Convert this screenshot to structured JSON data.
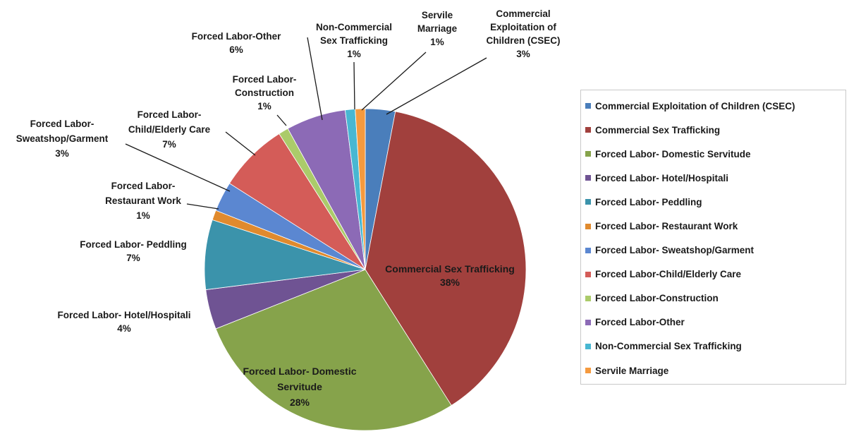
{
  "chart_data": {
    "type": "pie",
    "title": "",
    "slices": [
      {
        "name": "Commercial Exploitation of Children (CSEC)",
        "value": 3,
        "color": "#4A7EBB",
        "label": [
          "Commercial",
          "Exploitation of",
          "Children (CSEC)"
        ],
        "pct_label": "3%"
      },
      {
        "name": "Commercial Sex Trafficking",
        "value": 38,
        "color": "#A1403D",
        "label": [
          "Commercial Sex Trafficking"
        ],
        "pct_label": "38%"
      },
      {
        "name": "Forced Labor- Domestic Servitude",
        "value": 28,
        "color": "#86A34B",
        "label": [
          "Forced Labor- Domestic",
          "Servitude"
        ],
        "pct_label": "28%"
      },
      {
        "name": "Forced Labor- Hotel/Hospitali",
        "value": 4,
        "color": "#6F5393",
        "label": [
          "Forced Labor- Hotel/Hospitali"
        ],
        "pct_label": "4%"
      },
      {
        "name": "Forced Labor- Peddling",
        "value": 7,
        "color": "#3B93AB",
        "label": [
          "Forced Labor- Peddling"
        ],
        "pct_label": "7%"
      },
      {
        "name": "Forced Labor- Restaurant Work",
        "value": 1,
        "color": "#E08A2E",
        "label": [
          "Forced Labor-",
          "Restaurant Work"
        ],
        "pct_label": "1%"
      },
      {
        "name": "Forced Labor- Sweatshop/Garment",
        "value": 3,
        "color": "#5B87D1",
        "label": [
          "Forced Labor-",
          "Sweatshop/Garment"
        ],
        "pct_label": "3%"
      },
      {
        "name": "Forced Labor-Child/Elderly Care",
        "value": 7,
        "color": "#D45C58",
        "label": [
          "Forced Labor-",
          "Child/Elderly Care"
        ],
        "pct_label": "7%"
      },
      {
        "name": "Forced Labor-Construction",
        "value": 1,
        "color": "#ABCB6A",
        "label": [
          "Forced Labor-",
          "Construction"
        ],
        "pct_label": "1%"
      },
      {
        "name": "Forced Labor-Other",
        "value": 6,
        "color": "#8C6AB6",
        "label": [
          "Forced Labor-Other"
        ],
        "pct_label": "6%"
      },
      {
        "name": "Non-Commercial Sex Trafficking",
        "value": 1,
        "color": "#48B7D2",
        "label": [
          "Non-Commercial",
          "Sex Trafficking"
        ],
        "pct_label": "1%"
      },
      {
        "name": "Servile Marriage",
        "value": 1,
        "color": "#F59A3E",
        "label": [
          "Servile",
          "Marriage"
        ],
        "pct_label": "1%"
      }
    ],
    "legend_position": "right"
  }
}
